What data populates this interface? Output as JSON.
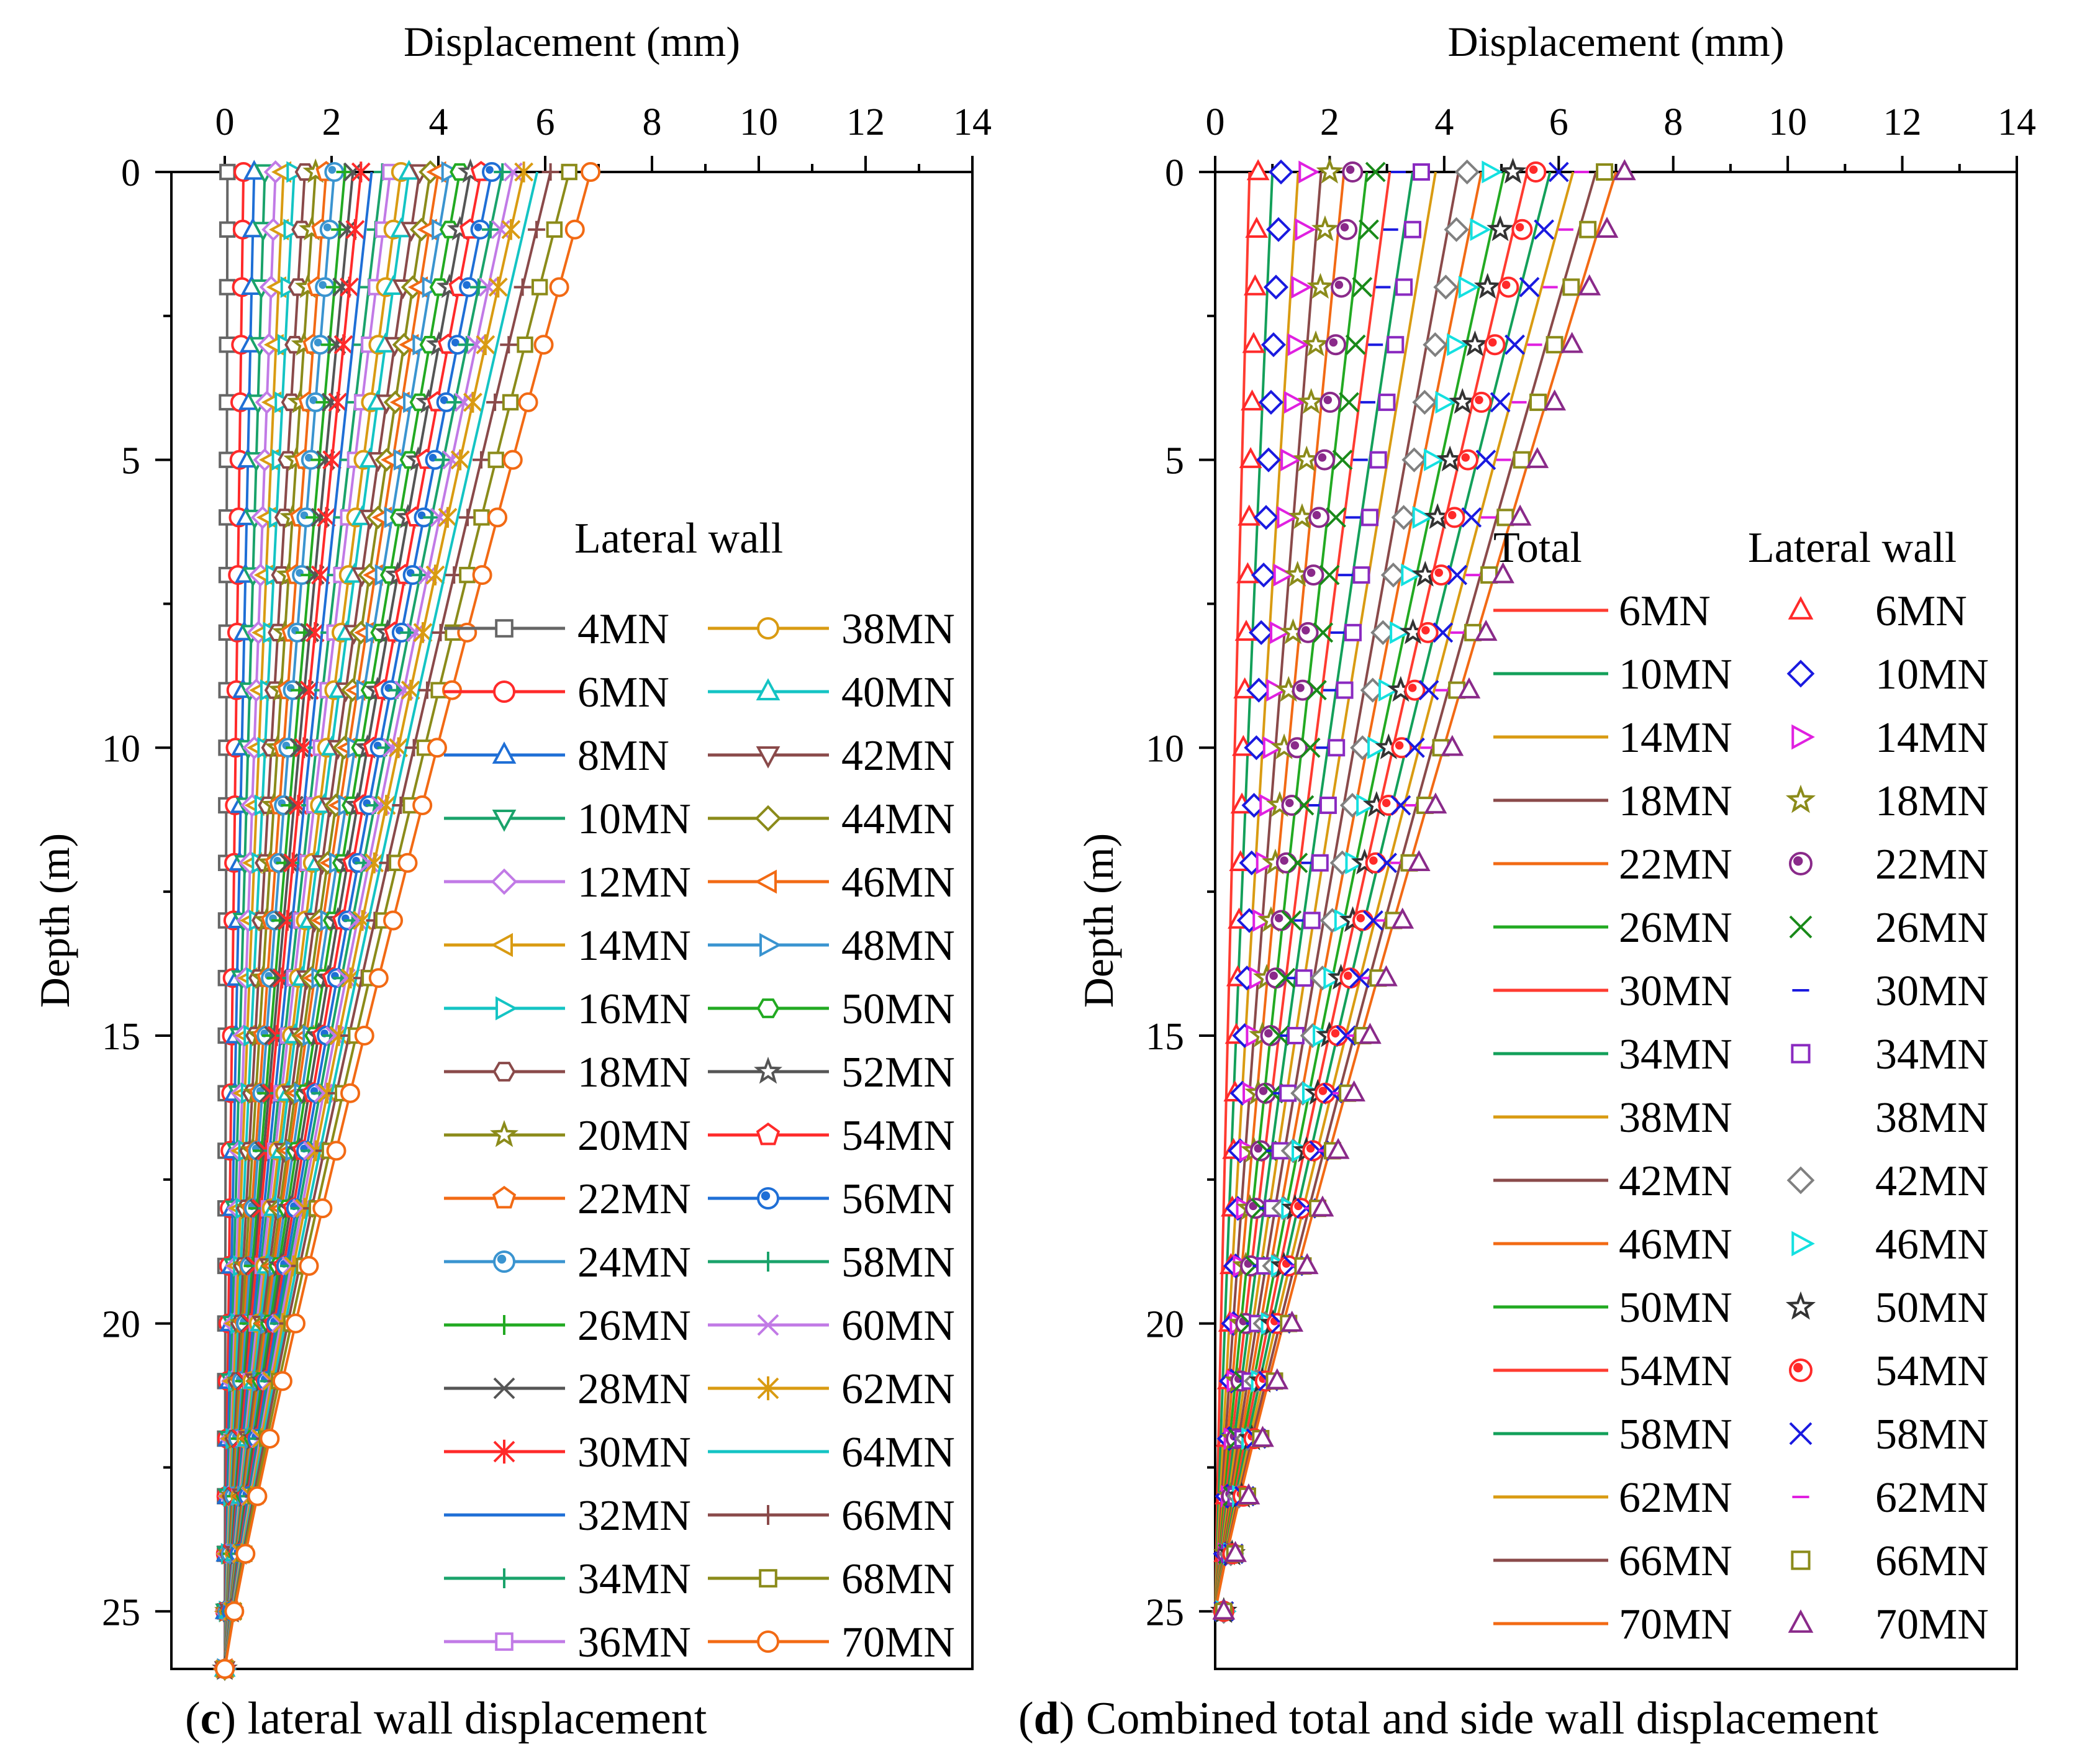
{
  "chart_data": [
    {
      "type": "line",
      "panel_label": "c",
      "caption_text": " lateral wall displacement",
      "xlabel": "Displacement (mm)",
      "ylabel": "Depth (m)",
      "xlim": [
        -1,
        14
      ],
      "ylim": [
        0,
        26
      ],
      "xticks": [
        0,
        2,
        4,
        6,
        8,
        10,
        12,
        14
      ],
      "yticks": [
        0,
        5,
        10,
        15,
        20,
        25
      ],
      "legend_title": "Lateral wall",
      "legend_position": "center-right",
      "depth_points": [
        0,
        1,
        2,
        3,
        4,
        5,
        6,
        7,
        8,
        9,
        10,
        11,
        12,
        13,
        14,
        15,
        16,
        17,
        18,
        19,
        20,
        21,
        22,
        23,
        24,
        25,
        26
      ],
      "curve_model": "displacement(depth) = surface_displacement * (1 - depth/26)^1.12",
      "series": [
        {
          "name": "4MN",
          "color": "#666666",
          "marker": "square",
          "surface_displacement": 0.05
        },
        {
          "name": "6MN",
          "color": "#ff2a2a",
          "marker": "circle",
          "surface_displacement": 0.35
        },
        {
          "name": "8MN",
          "color": "#1f6fd6",
          "marker": "triangle-up",
          "surface_displacement": 0.55
        },
        {
          "name": "10MN",
          "color": "#1aa36b",
          "marker": "triangle-down",
          "surface_displacement": 0.75
        },
        {
          "name": "12MN",
          "color": "#c17ae6",
          "marker": "diamond",
          "surface_displacement": 0.95
        },
        {
          "name": "14MN",
          "color": "#d99b12",
          "marker": "triangle-left",
          "surface_displacement": 1.1
        },
        {
          "name": "16MN",
          "color": "#14c4c4",
          "marker": "triangle-right",
          "surface_displacement": 1.3
        },
        {
          "name": "18MN",
          "color": "#8a4a4a",
          "marker": "hexagon",
          "surface_displacement": 1.5
        },
        {
          "name": "20MN",
          "color": "#8b8b1a",
          "marker": "star",
          "surface_displacement": 1.7
        },
        {
          "name": "22MN",
          "color": "#f26a14",
          "marker": "pentagon",
          "surface_displacement": 1.9
        },
        {
          "name": "24MN",
          "color": "#3a94d0",
          "marker": "circle-dot",
          "surface_displacement": 2.05
        },
        {
          "name": "26MN",
          "color": "#22aa22",
          "marker": "plus",
          "surface_displacement": 2.25
        },
        {
          "name": "28MN",
          "color": "#555555",
          "marker": "x",
          "surface_displacement": 2.4
        },
        {
          "name": "30MN",
          "color": "#ff2a2a",
          "marker": "asterisk",
          "surface_displacement": 2.55
        },
        {
          "name": "32MN",
          "color": "#1f6fd6",
          "marker": "none",
          "surface_displacement": 2.75
        },
        {
          "name": "34MN",
          "color": "#1aa36b",
          "marker": "plus",
          "surface_displacement": 2.95
        },
        {
          "name": "36MN",
          "color": "#c17ae6",
          "marker": "square",
          "surface_displacement": 3.1
        },
        {
          "name": "38MN",
          "color": "#d99b12",
          "marker": "circle",
          "surface_displacement": 3.3
        },
        {
          "name": "40MN",
          "color": "#14c4c4",
          "marker": "triangle-up",
          "surface_displacement": 3.45
        },
        {
          "name": "42MN",
          "color": "#8a4a4a",
          "marker": "triangle-down",
          "surface_displacement": 3.65
        },
        {
          "name": "44MN",
          "color": "#8b8b1a",
          "marker": "diamond",
          "surface_displacement": 3.85
        },
        {
          "name": "46MN",
          "color": "#f26a14",
          "marker": "triangle-left",
          "surface_displacement": 4.0
        },
        {
          "name": "48MN",
          "color": "#3a94d0",
          "marker": "triangle-right",
          "surface_displacement": 4.2
        },
        {
          "name": "50MN",
          "color": "#22aa22",
          "marker": "hexagon",
          "surface_displacement": 4.4
        },
        {
          "name": "52MN",
          "color": "#555555",
          "marker": "star",
          "surface_displacement": 4.6
        },
        {
          "name": "54MN",
          "color": "#ff2a2a",
          "marker": "pentagon",
          "surface_displacement": 4.8
        },
        {
          "name": "56MN",
          "color": "#1f6fd6",
          "marker": "circle-dot",
          "surface_displacement": 5.0
        },
        {
          "name": "58MN",
          "color": "#1aa36b",
          "marker": "plus",
          "surface_displacement": 5.2
        },
        {
          "name": "60MN",
          "color": "#c17ae6",
          "marker": "x",
          "surface_displacement": 5.4
        },
        {
          "name": "62MN",
          "color": "#d99b12",
          "marker": "asterisk",
          "surface_displacement": 5.6
        },
        {
          "name": "64MN",
          "color": "#14c4c4",
          "marker": "none",
          "surface_displacement": 5.85
        },
        {
          "name": "66MN",
          "color": "#8a4a4a",
          "marker": "plus",
          "surface_displacement": 6.1
        },
        {
          "name": "68MN",
          "color": "#8b8b1a",
          "marker": "square",
          "surface_displacement": 6.45
        },
        {
          "name": "70MN",
          "color": "#f26a14",
          "marker": "circle",
          "surface_displacement": 6.85
        }
      ]
    },
    {
      "type": "line",
      "panel_label": "d",
      "caption_text": " Combined total and side wall displacement",
      "xlabel": "Displacement (mm)",
      "ylabel": "Depth (m)",
      "xlim": [
        0,
        14
      ],
      "ylim": [
        0,
        26
      ],
      "xticks": [
        0,
        2,
        4,
        6,
        8,
        10,
        12,
        14
      ],
      "yticks": [
        0,
        5,
        10,
        15,
        20,
        25
      ],
      "legend_title_total": "Total",
      "legend_title_wall": "Lateral wall",
      "legend_position": "center-right",
      "total_depth_points": [
        0,
        1,
        2,
        3,
        4,
        5,
        6,
        7,
        8,
        9,
        10,
        11,
        12,
        13,
        14,
        15,
        16,
        17,
        18,
        19,
        20,
        21,
        22,
        23,
        24,
        25
      ],
      "marker_depth_points": [
        0,
        1,
        2,
        3,
        4,
        5,
        6,
        7,
        8,
        9,
        10,
        11,
        12,
        13,
        14,
        15,
        16,
        17,
        18,
        19,
        20,
        21,
        22,
        23,
        24,
        25
      ],
      "curve_model": "displacement(depth) = surface_displacement * (1 - depth/25)^1.1",
      "total_series": [
        {
          "name": "6MN",
          "color": "#ff3b30",
          "surface_displacement": 0.6
        },
        {
          "name": "10MN",
          "color": "#13a05a",
          "surface_displacement": 1.0
        },
        {
          "name": "14MN",
          "color": "#d99b12",
          "surface_displacement": 1.45
        },
        {
          "name": "18MN",
          "color": "#8a4a4a",
          "surface_displacement": 1.85
        },
        {
          "name": "22MN",
          "color": "#f26a14",
          "surface_displacement": 2.25
        },
        {
          "name": "26MN",
          "color": "#22aa22",
          "surface_displacement": 2.65
        },
        {
          "name": "30MN",
          "color": "#ff3b30",
          "surface_displacement": 3.05
        },
        {
          "name": "34MN",
          "color": "#13a05a",
          "surface_displacement": 3.45
        },
        {
          "name": "38MN",
          "color": "#d99b12",
          "surface_displacement": 3.85
        },
        {
          "name": "42MN",
          "color": "#8a4a4a",
          "surface_displacement": 4.25
        },
        {
          "name": "46MN",
          "color": "#f26a14",
          "surface_displacement": 4.65
        },
        {
          "name": "50MN",
          "color": "#22aa22",
          "surface_displacement": 5.05
        },
        {
          "name": "54MN",
          "color": "#ff3b30",
          "surface_displacement": 5.45
        },
        {
          "name": "58MN",
          "color": "#13a05a",
          "surface_displacement": 5.85
        },
        {
          "name": "62MN",
          "color": "#d99b12",
          "surface_displacement": 6.25
        },
        {
          "name": "66MN",
          "color": "#8a4a4a",
          "surface_displacement": 6.65
        },
        {
          "name": "70MN",
          "color": "#f26a14",
          "surface_displacement": 7.0
        }
      ],
      "wall_series": [
        {
          "name": "6MN",
          "color": "#ff2a2a",
          "marker": "triangle-up",
          "surface_displacement": 0.6
        },
        {
          "name": "10MN",
          "color": "#1a1ae0",
          "marker": "diamond",
          "surface_displacement": 1.0
        },
        {
          "name": "14MN",
          "color": "#e020e0",
          "marker": "triangle-right",
          "surface_displacement": 1.45
        },
        {
          "name": "18MN",
          "color": "#8b8b1a",
          "marker": "star",
          "surface_displacement": 1.85
        },
        {
          "name": "22MN",
          "color": "#8a2a8a",
          "marker": "circle-dot",
          "surface_displacement": 2.25
        },
        {
          "name": "26MN",
          "color": "#1a8a1a",
          "marker": "x",
          "surface_displacement": 2.65
        },
        {
          "name": "30MN",
          "color": "#1a1ae0",
          "marker": "dash",
          "surface_displacement": 3.05
        },
        {
          "name": "34MN",
          "color": "#8a2ac0",
          "marker": "square",
          "surface_displacement": 3.45
        },
        {
          "name": "38MN",
          "color": "#ffffff",
          "marker": "none",
          "surface_displacement": 3.85
        },
        {
          "name": "42MN",
          "color": "#808080",
          "marker": "diamond",
          "surface_displacement": 4.25
        },
        {
          "name": "46MN",
          "color": "#14e0e0",
          "marker": "triangle-right",
          "surface_displacement": 4.65
        },
        {
          "name": "50MN",
          "color": "#333333",
          "marker": "star",
          "surface_displacement": 5.05
        },
        {
          "name": "54MN",
          "color": "#ff2a2a",
          "marker": "circle-dot",
          "surface_displacement": 5.45
        },
        {
          "name": "58MN",
          "color": "#1a1ae0",
          "marker": "x",
          "surface_displacement": 5.85
        },
        {
          "name": "62MN",
          "color": "#e020e0",
          "marker": "dash",
          "surface_displacement": 6.25
        },
        {
          "name": "66MN",
          "color": "#8b8b1a",
          "marker": "square",
          "surface_displacement": 6.65
        },
        {
          "name": "70MN",
          "color": "#8a2a8a",
          "marker": "triangle-up",
          "surface_displacement": 7.0
        }
      ]
    }
  ]
}
